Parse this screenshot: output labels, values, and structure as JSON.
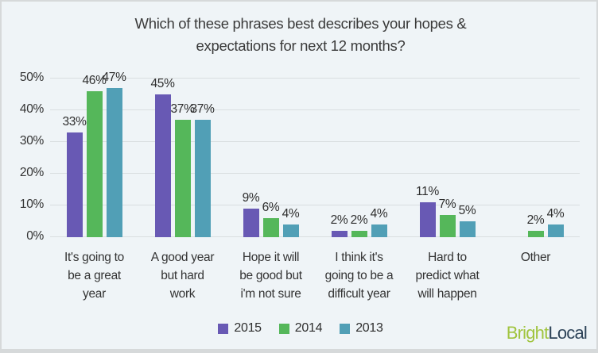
{
  "title": "Which of these phrases best describes your hopes &\nexpectations for next 12 months?",
  "chart_data": {
    "type": "bar",
    "title": "Which of these phrases best describes your hopes & expectations for next 12 months?",
    "categories": [
      "It's going to\nbe a great\nyear",
      "A good year\nbut hard\nwork",
      "Hope it will\nbe good but\ni'm not sure",
      "I think it's\ngoing to be a\ndifficult year",
      "Hard to\npredict what\nwill happen",
      "Other"
    ],
    "series": [
      {
        "name": "2015",
        "color": "#6859b4",
        "values": [
          33,
          45,
          9,
          2,
          11,
          null
        ]
      },
      {
        "name": "2014",
        "color": "#55b75a",
        "values": [
          46,
          37,
          6,
          2,
          7,
          2
        ]
      },
      {
        "name": "2013",
        "color": "#519fb6",
        "values": [
          47,
          37,
          4,
          4,
          5,
          4
        ]
      }
    ],
    "ylim": [
      0,
      50
    ],
    "yticks": [
      "0%",
      "10%",
      "20%",
      "30%",
      "40%",
      "50%"
    ],
    "value_suffix": "%",
    "grid": true,
    "legend_position": "bottom",
    "xlabel": "",
    "ylabel": ""
  },
  "branding": {
    "bright": "Bright",
    "local": "Local",
    "bright_color": "#a0c43e",
    "local_color": "#2e4459"
  },
  "colors": {
    "background": "#eff4f7",
    "gridline": "#d9dee0",
    "border": "#d6d9da",
    "text": "#333333"
  }
}
